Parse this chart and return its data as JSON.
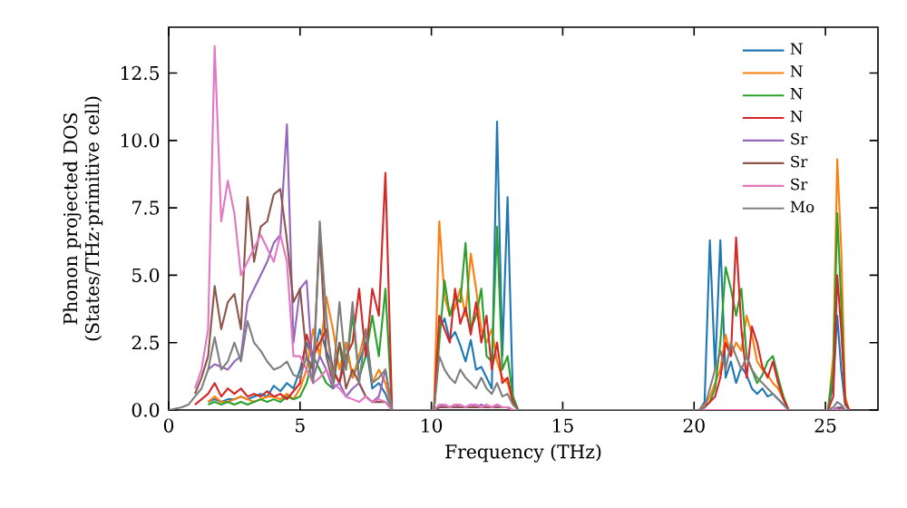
{
  "chart_data": {
    "type": "line",
    "xlabel": "Frequency (THz)",
    "ylabel": "Phonon projected DOS (States/THz·primitive cell)",
    "x": [
      0,
      0.25,
      0.5,
      0.75,
      1,
      1.25,
      1.5,
      1.75,
      2,
      2.25,
      2.5,
      2.75,
      3,
      3.25,
      3.5,
      3.75,
      4,
      4.25,
      4.5,
      4.75,
      5,
      5.25,
      5.5,
      5.75,
      6,
      6.25,
      6.5,
      6.75,
      7,
      7.25,
      7.5,
      7.75,
      8,
      8.25,
      8.5,
      8.75,
      10.1,
      10.3,
      10.5,
      10.7,
      10.9,
      11.1,
      11.3,
      11.5,
      11.7,
      11.9,
      12.1,
      12.3,
      12.5,
      12.7,
      12.9,
      13.1,
      13.3,
      20.2,
      20.4,
      20.6,
      20.8,
      21.0,
      21.2,
      21.4,
      21.6,
      21.8,
      22.0,
      22.2,
      22.4,
      22.6,
      22.8,
      23.0,
      23.2,
      23.4,
      23.6,
      23.8,
      25.1,
      25.3,
      25.45,
      25.6,
      25.75,
      25.9
    ],
    "xlim": [
      0,
      27
    ],
    "ylim": [
      0,
      14.2
    ],
    "xticks": [
      0,
      5,
      10,
      15,
      20,
      25
    ],
    "yticks": [
      {
        "value": 0,
        "label": "0.0"
      },
      {
        "value": 2.5,
        "label": "2.5"
      },
      {
        "value": 5,
        "label": "5.0"
      },
      {
        "value": 7.5,
        "label": "7.5"
      },
      {
        "value": 10,
        "label": "10.0"
      },
      {
        "value": 12.5,
        "label": "12.5"
      }
    ],
    "legend": "top right",
    "series": [
      {
        "name": "N",
        "color": "#1f77b4",
        "values": [
          null,
          null,
          null,
          null,
          null,
          null,
          0.3,
          0.4,
          0.3,
          0.4,
          0.4,
          0.5,
          0.4,
          0.5,
          0.6,
          0.5,
          0.9,
          0.7,
          1.0,
          0.8,
          1.5,
          2.5,
          1.8,
          3.0,
          2.2,
          1.5,
          1.0,
          2.5,
          1.2,
          1.8,
          2.5,
          0.8,
          1.0,
          0.6,
          0,
          0,
          0,
          3.0,
          3.4,
          2.6,
          2.9,
          2.4,
          1.8,
          2.6,
          1.5,
          1.6,
          1.2,
          0.8,
          10.7,
          2.0,
          7.9,
          0.5,
          0,
          0,
          0.3,
          6.3,
          1.5,
          6.3,
          1.2,
          1.8,
          1.0,
          1.6,
          1.3,
          0.8,
          0.6,
          0.8,
          0.5,
          0.6,
          0.4,
          0.2,
          0,
          0,
          0,
          1.0,
          3.5,
          1.5,
          0.2,
          0
        ]
      },
      {
        "name": "N",
        "color": "#ff7f0e",
        "values": [
          null,
          null,
          null,
          null,
          null,
          null,
          0.3,
          0.5,
          0.3,
          0.3,
          0.4,
          0.5,
          0.4,
          0.3,
          0.4,
          0.5,
          0.5,
          0.4,
          0.6,
          0.4,
          0.8,
          1.5,
          3.0,
          2.0,
          4.2,
          3.0,
          1.5,
          2.5,
          1.2,
          2.0,
          3.0,
          1.0,
          1.5,
          1.0,
          0,
          0,
          0,
          7.0,
          4.2,
          3.5,
          3.8,
          4.5,
          3.5,
          5.8,
          4.5,
          3.0,
          2.5,
          3.0,
          1.8,
          1.2,
          1.0,
          0.3,
          0,
          0,
          0.2,
          0.5,
          1.0,
          1.5,
          2.8,
          2.0,
          2.5,
          2.2,
          3.5,
          2.8,
          1.8,
          1.5,
          1.3,
          1.0,
          0.8,
          0.4,
          0,
          0,
          0,
          2.0,
          9.3,
          6.0,
          0.5,
          0
        ]
      },
      {
        "name": "N",
        "color": "#2ca02c",
        "values": [
          null,
          null,
          null,
          null,
          null,
          null,
          0.2,
          0.3,
          0.2,
          0.3,
          0.2,
          0.3,
          0.2,
          0.3,
          0.4,
          0.3,
          0.4,
          0.3,
          0.5,
          0.4,
          0.5,
          1.0,
          2.0,
          1.5,
          1.0,
          0.8,
          2.5,
          1.5,
          3.5,
          1.2,
          2.0,
          3.5,
          2.0,
          4.5,
          0,
          0,
          0,
          2.5,
          4.8,
          3.5,
          4.2,
          4.0,
          6.2,
          3.0,
          3.5,
          4.5,
          2.0,
          1.8,
          6.8,
          1.5,
          2.0,
          0.5,
          0,
          0,
          0.1,
          0.3,
          0.8,
          2.5,
          5.3,
          4.5,
          3.5,
          4.5,
          2.0,
          1.5,
          1.0,
          1.3,
          1.8,
          2.0,
          1.2,
          0.5,
          0,
          0,
          0,
          1.5,
          7.3,
          4.0,
          0.3,
          0
        ]
      },
      {
        "name": "N",
        "color": "#d62728",
        "values": [
          null,
          null,
          null,
          null,
          0.2,
          0.4,
          0.6,
          1.0,
          0.5,
          0.8,
          0.6,
          0.8,
          0.5,
          0.6,
          0.5,
          0.7,
          0.5,
          0.6,
          0.4,
          0.7,
          1.0,
          2.8,
          2.0,
          2.5,
          3.0,
          1.5,
          1.0,
          2.0,
          2.5,
          4.5,
          2.0,
          4.5,
          3.5,
          8.8,
          0,
          0,
          0,
          3.5,
          3.0,
          2.5,
          4.5,
          3.2,
          3.8,
          2.8,
          4.0,
          2.5,
          3.5,
          1.5,
          2.5,
          1.0,
          1.2,
          0.3,
          0,
          0,
          0.1,
          0.3,
          0.5,
          1.2,
          2.5,
          2.0,
          6.4,
          3.0,
          1.2,
          3.1,
          2.5,
          1.6,
          1.2,
          1.8,
          1.0,
          0.4,
          0,
          0,
          0,
          0.5,
          5.0,
          3.0,
          0.3,
          0
        ]
      },
      {
        "name": "Sr",
        "color": "#9467bd",
        "values": [
          null,
          null,
          null,
          null,
          null,
          null,
          1.5,
          1.7,
          1.6,
          1.5,
          1.8,
          2.0,
          4.0,
          4.5,
          5.0,
          5.5,
          6.2,
          6.5,
          10.6,
          2.5,
          4.5,
          4.8,
          1.2,
          2.0,
          1.5,
          0.8,
          1.0,
          0.5,
          0.8,
          1.0,
          0.5,
          0.3,
          0.5,
          1.5,
          0,
          0,
          0,
          0.1,
          0.2,
          0.1,
          0.2,
          0.1,
          0.1,
          0.2,
          0.1,
          0.2,
          0.1,
          0.1,
          0.2,
          0.1,
          0.1,
          0,
          0,
          0,
          0,
          0,
          0,
          0,
          0,
          0,
          0,
          0,
          0,
          0,
          0,
          0,
          0,
          0,
          0,
          0,
          0,
          0,
          0,
          0,
          0.1,
          0.1,
          0,
          0
        ]
      },
      {
        "name": "Sr",
        "color": "#8c564b",
        "values": [
          null,
          null,
          null,
          null,
          0.6,
          1.2,
          2.0,
          4.6,
          3.0,
          4.0,
          4.3,
          3.0,
          7.9,
          5.5,
          6.8,
          7.0,
          8.0,
          8.2,
          6.3,
          4.0,
          4.5,
          2.0,
          1.5,
          6.5,
          2.0,
          1.0,
          2.5,
          0.8,
          1.5,
          1.0,
          0.5,
          0.3,
          0.3,
          0.3,
          0,
          0,
          0,
          0.1,
          0.1,
          0.1,
          0.1,
          0.1,
          0.1,
          0.1,
          0.1,
          0.1,
          0.1,
          0.1,
          0.1,
          0.1,
          0.1,
          0,
          0,
          0,
          0,
          0,
          0,
          0,
          0,
          0,
          0,
          0,
          0,
          0,
          0,
          0,
          0,
          0,
          0,
          0,
          0,
          0,
          0,
          0,
          0,
          0.1,
          0,
          0
        ]
      },
      {
        "name": "Sr",
        "color": "#e377c2",
        "values": [
          null,
          null,
          null,
          null,
          0.8,
          1.5,
          3.0,
          13.5,
          7.0,
          8.5,
          7.3,
          5.0,
          5.5,
          6.0,
          6.5,
          6.0,
          5.5,
          6.5,
          5.5,
          2.0,
          2.0,
          1.5,
          1.0,
          1.2,
          1.5,
          1.0,
          0.8,
          0.5,
          0.4,
          0.3,
          0.5,
          0.3,
          0.4,
          0.3,
          0,
          0,
          0,
          0.2,
          0.2,
          0.1,
          0.2,
          0.2,
          0.1,
          0.2,
          0.2,
          0.1,
          0.2,
          0.1,
          0.2,
          0.1,
          0.1,
          0,
          0,
          0,
          0,
          0,
          0,
          0,
          0,
          0,
          0,
          0,
          0,
          0,
          0,
          0,
          0,
          0,
          0,
          0,
          0,
          0,
          0,
          0,
          0,
          0,
          0,
          0
        ]
      },
      {
        "name": "Mo",
        "color": "#7f7f7f",
        "values": [
          0,
          0.05,
          0.1,
          0.2,
          0.5,
          0.8,
          1.5,
          2.7,
          1.5,
          1.8,
          2.5,
          1.8,
          3.3,
          2.5,
          2.2,
          1.8,
          1.5,
          1.6,
          1.8,
          1.3,
          1.2,
          2.0,
          1.0,
          7.0,
          3.5,
          1.0,
          4.0,
          1.5,
          4.0,
          1.0,
          3.0,
          1.0,
          1.2,
          1.5,
          0,
          0,
          0,
          2.0,
          1.5,
          1.2,
          1.0,
          1.5,
          1.2,
          1.0,
          0.8,
          1.2,
          0.8,
          0.6,
          1.0,
          0.5,
          0.6,
          0.2,
          0,
          0,
          0.1,
          0.8,
          1.5,
          2.2,
          1.5,
          2.5,
          2.0,
          1.5,
          2.0,
          1.5,
          1.2,
          1.0,
          0.8,
          0.6,
          0.4,
          0.2,
          0,
          0,
          0,
          0.1,
          0.3,
          0.2,
          0,
          0
        ]
      }
    ]
  }
}
